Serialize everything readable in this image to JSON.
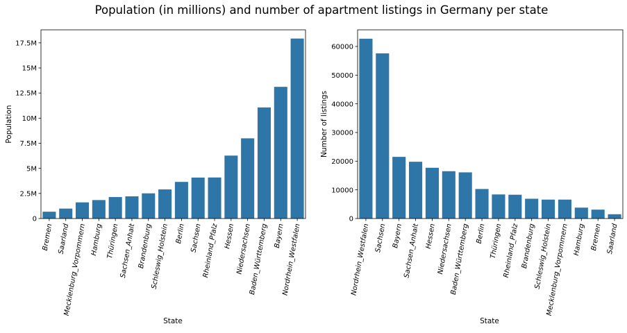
{
  "figure": {
    "suptitle": "Population (in millions) and number of apartment listings in Germany per state"
  },
  "colors": {
    "bar": "#2e76a8",
    "axis": "#000000",
    "background": "#ffffff"
  },
  "chart_data": [
    {
      "type": "bar",
      "xlabel": "State",
      "ylabel": "Population",
      "ylim": [
        0,
        18800000
      ],
      "yticks": [
        0,
        2500000,
        5000000,
        7500000,
        10000000,
        12500000,
        15000000,
        17500000
      ],
      "ytick_labels": [
        "0",
        "2.5M",
        "5M",
        "7.5M",
        "10M",
        "12.5M",
        "15M",
        "17.5M"
      ],
      "categories": [
        "Bremen",
        "Saarland",
        "Mecklenburg_Vorpommern",
        "Hamburg",
        "Thüringen",
        "Sachsen_Anhalt",
        "Brandenburg",
        "Schleswig_Holstein",
        "Berlin",
        "Sachsen",
        "Rheinland_Pfalz",
        "Hessen",
        "Niedersachsen",
        "Baden_Württemberg",
        "Bayern",
        "Nordrhein_Westfalen"
      ],
      "values": [
        680000,
        990000,
        1610000,
        1840000,
        2140000,
        2210000,
        2510000,
        2900000,
        3650000,
        4080000,
        4090000,
        6270000,
        7990000,
        11070000,
        13120000,
        17930000
      ],
      "grid": false,
      "legend": "none"
    },
    {
      "type": "bar",
      "xlabel": "State",
      "ylabel": "Number of listings",
      "ylim": [
        0,
        65800
      ],
      "yticks": [
        0,
        10000,
        20000,
        30000,
        40000,
        50000,
        60000
      ],
      "ytick_labels": [
        "0",
        "10000",
        "20000",
        "30000",
        "40000",
        "50000",
        "60000"
      ],
      "categories": [
        "Nordrhein_Westfalen",
        "Sachsen",
        "Bayern",
        "Sachsen_Anhalt",
        "Hessen",
        "Niedersachsen",
        "Baden_Württemberg",
        "Berlin",
        "Thüringen",
        "Rheinland_Pfalz",
        "Brandenburg",
        "Schleswig_Holstein",
        "Mecklenburg_Vorpommern",
        "Hamburg",
        "Bremen",
        "Saarland"
      ],
      "values": [
        62700,
        57600,
        21500,
        19800,
        17700,
        16500,
        16100,
        10300,
        8400,
        8300,
        6900,
        6600,
        6600,
        3800,
        3100,
        1500
      ],
      "grid": false,
      "legend": "none"
    }
  ]
}
